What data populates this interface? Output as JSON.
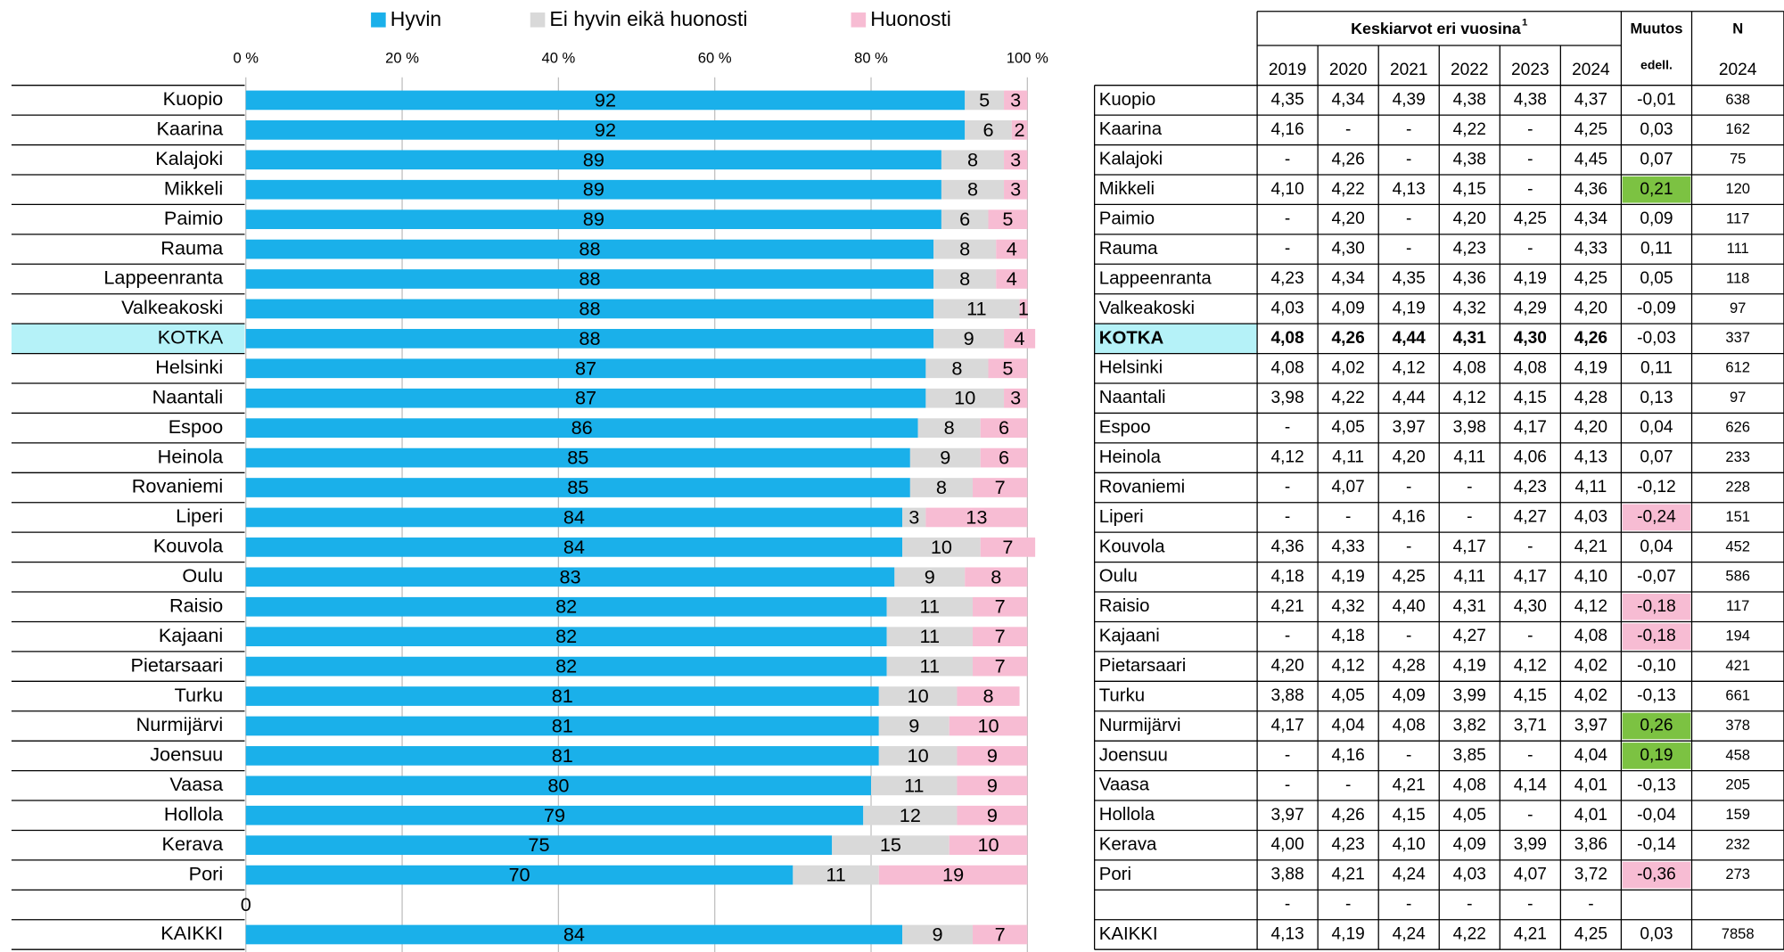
{
  "chart_data": {
    "type": "stacked_bar_h",
    "categories": [
      "Kuopio",
      "Kaarina",
      "Kalajoki",
      "Mikkeli",
      "Paimio",
      "Rauma",
      "Lappeenranta",
      "Valkeakoski",
      "KOTKA",
      "Helsinki",
      "Naantali",
      "Espoo",
      "Heinola",
      "Rovaniemi",
      "Liperi",
      "Kouvola",
      "Oulu",
      "Raisio",
      "Kajaani",
      "Pietarsaari",
      "Turku",
      "Nurmijärvi",
      "Joensuu",
      "Vaasa",
      "Hollola",
      "Kerava",
      "Pori",
      null,
      "KAIKKI"
    ],
    "series": [
      {
        "name": "Hyvin",
        "color": "#1ab0ea",
        "values": [
          92,
          92,
          89,
          89,
          89,
          88,
          88,
          88,
          88,
          87,
          87,
          86,
          85,
          85,
          84,
          84,
          83,
          82,
          82,
          82,
          81,
          81,
          81,
          80,
          79,
          75,
          70,
          0,
          84
        ]
      },
      {
        "name": "Ei hyvin eikä huonosti",
        "color": "#d9d9d9",
        "values": [
          5,
          6,
          8,
          8,
          6,
          8,
          8,
          11,
          9,
          8,
          10,
          8,
          9,
          8,
          3,
          10,
          9,
          11,
          11,
          11,
          10,
          9,
          10,
          11,
          12,
          15,
          11,
          null,
          9
        ]
      },
      {
        "name": "Huonosti",
        "color": "#f7bcd3",
        "values": [
          3,
          2,
          3,
          3,
          5,
          4,
          4,
          1,
          4,
          5,
          3,
          6,
          6,
          7,
          13,
          7,
          8,
          7,
          7,
          7,
          8,
          10,
          9,
          9,
          9,
          10,
          19,
          null,
          7
        ]
      }
    ],
    "xlim": [
      0,
      100
    ],
    "xticks": [
      {
        "value": 0,
        "label": "0 %"
      },
      {
        "value": 20,
        "label": "20 %"
      },
      {
        "value": 40,
        "label": "40 %"
      },
      {
        "value": 60,
        "label": "60 %"
      },
      {
        "value": 80,
        "label": "80 %"
      },
      {
        "value": 100,
        "label": "100 %"
      }
    ],
    "grid": true,
    "highlight_category": "KOTKA",
    "highlight_color": "#b5f2f8"
  },
  "table": {
    "title": "Keskiarvot eri vuosina",
    "title_sup": "1",
    "muutos_header": "Muutos",
    "muutos_sub": "edell.",
    "n_header": "N",
    "n_sub": "2024",
    "years": [
      "2019",
      "2020",
      "2021",
      "2022",
      "2023",
      "2024"
    ],
    "rows": [
      {
        "name": "Kuopio",
        "means": [
          "4,35",
          "4,34",
          "4,39",
          "4,38",
          "4,38",
          "4,37"
        ],
        "muutos": "-0,01",
        "n": 638
      },
      {
        "name": "Kaarina",
        "means": [
          "4,16",
          "-",
          "-",
          "4,22",
          "-",
          "4,25"
        ],
        "muutos": "0,03",
        "n": 162
      },
      {
        "name": "Kalajoki",
        "means": [
          "-",
          "4,26",
          "-",
          "4,38",
          "-",
          "4,45"
        ],
        "muutos": "0,07",
        "n": 75
      },
      {
        "name": "Mikkeli",
        "means": [
          "4,10",
          "4,22",
          "4,13",
          "4,15",
          "-",
          "4,36"
        ],
        "muutos": "0,21",
        "n": 120,
        "highlight": "#7cc242"
      },
      {
        "name": "Paimio",
        "means": [
          "-",
          "4,20",
          "-",
          "4,20",
          "4,25",
          "4,34"
        ],
        "muutos": "0,09",
        "n": 117
      },
      {
        "name": "Rauma",
        "means": [
          "-",
          "4,30",
          "-",
          "4,23",
          "-",
          "4,33"
        ],
        "muutos": "0,11",
        "n": 111
      },
      {
        "name": "Lappeenranta",
        "means": [
          "4,23",
          "4,34",
          "4,35",
          "4,36",
          "4,19",
          "4,25"
        ],
        "muutos": "0,05",
        "n": 118
      },
      {
        "name": "Valkeakoski",
        "means": [
          "4,03",
          "4,09",
          "4,19",
          "4,32",
          "4,29",
          "4,20"
        ],
        "muutos": "-0,09",
        "n": 97
      },
      {
        "name": "KOTKA",
        "means": [
          "4,08",
          "4,26",
          "4,44",
          "4,31",
          "4,30",
          "4,26"
        ],
        "muutos": "-0,03",
        "n": 337
      },
      {
        "name": "Helsinki",
        "means": [
          "4,08",
          "4,02",
          "4,12",
          "4,08",
          "4,08",
          "4,19"
        ],
        "muutos": "0,11",
        "n": 612
      },
      {
        "name": "Naantali",
        "means": [
          "3,98",
          "4,22",
          "4,44",
          "4,12",
          "4,15",
          "4,28"
        ],
        "muutos": "0,13",
        "n": 97
      },
      {
        "name": "Espoo",
        "means": [
          "-",
          "4,05",
          "3,97",
          "3,98",
          "4,17",
          "4,20"
        ],
        "muutos": "0,04",
        "n": 626
      },
      {
        "name": "Heinola",
        "means": [
          "4,12",
          "4,11",
          "4,20",
          "4,11",
          "4,06",
          "4,13"
        ],
        "muutos": "0,07",
        "n": 233
      },
      {
        "name": "Rovaniemi",
        "means": [
          "-",
          "4,07",
          "-",
          "-",
          "4,23",
          "4,11"
        ],
        "muutos": "-0,12",
        "n": 228
      },
      {
        "name": "Liperi",
        "means": [
          "-",
          "-",
          "4,16",
          "-",
          "4,27",
          "4,03"
        ],
        "muutos": "-0,24",
        "n": 151,
        "highlight": "#f7bcd3"
      },
      {
        "name": "Kouvola",
        "means": [
          "4,36",
          "4,33",
          "-",
          "4,17",
          "-",
          "4,21"
        ],
        "muutos": "0,04",
        "n": 452
      },
      {
        "name": "Oulu",
        "means": [
          "4,18",
          "4,19",
          "4,25",
          "4,11",
          "4,17",
          "4,10"
        ],
        "muutos": "-0,07",
        "n": 586
      },
      {
        "name": "Raisio",
        "means": [
          "4,21",
          "4,32",
          "4,40",
          "4,31",
          "4,30",
          "4,12"
        ],
        "muutos": "-0,18",
        "n": 117,
        "highlight": "#f7bcd3"
      },
      {
        "name": "Kajaani",
        "means": [
          "-",
          "4,18",
          "-",
          "4,27",
          "-",
          "4,08"
        ],
        "muutos": "-0,18",
        "n": 194,
        "highlight": "#f7bcd3"
      },
      {
        "name": "Pietarsaari",
        "means": [
          "4,20",
          "4,12",
          "4,28",
          "4,19",
          "4,12",
          "4,02"
        ],
        "muutos": "-0,10",
        "n": 421
      },
      {
        "name": "Turku",
        "means": [
          "3,88",
          "4,05",
          "4,09",
          "3,99",
          "4,15",
          "4,02"
        ],
        "muutos": "-0,13",
        "n": 661
      },
      {
        "name": "Nurmijärvi",
        "means": [
          "4,17",
          "4,04",
          "4,08",
          "3,82",
          "3,71",
          "3,97"
        ],
        "muutos": "0,26",
        "n": 378,
        "highlight": "#7cc242"
      },
      {
        "name": "Joensuu",
        "means": [
          "-",
          "4,16",
          "-",
          "3,85",
          "-",
          "4,04"
        ],
        "muutos": "0,19",
        "n": 458,
        "highlight": "#7cc242"
      },
      {
        "name": "Vaasa",
        "means": [
          "-",
          "-",
          "4,21",
          "4,08",
          "4,14",
          "4,01"
        ],
        "muutos": "-0,13",
        "n": 205
      },
      {
        "name": "Hollola",
        "means": [
          "3,97",
          "4,26",
          "4,15",
          "4,05",
          "-",
          "4,01"
        ],
        "muutos": "-0,04",
        "n": 159
      },
      {
        "name": "Kerava",
        "means": [
          "4,00",
          "4,23",
          "4,10",
          "4,09",
          "3,99",
          "3,86"
        ],
        "muutos": "-0,14",
        "n": 232
      },
      {
        "name": "Pori",
        "means": [
          "3,88",
          "4,21",
          "4,24",
          "4,03",
          "4,07",
          "3,72"
        ],
        "muutos": "-0,36",
        "n": 273,
        "highlight": "#f7bcd3"
      },
      {
        "name": null,
        "means": [
          "-",
          "-",
          "-",
          "-",
          "-",
          "-"
        ],
        "muutos": null,
        "n": null
      },
      {
        "name": "KAIKKI",
        "means": [
          "4,13",
          "4,19",
          "4,24",
          "4,22",
          "4,21",
          "4,25"
        ],
        "muutos": "0,03",
        "n": 7858
      }
    ]
  }
}
